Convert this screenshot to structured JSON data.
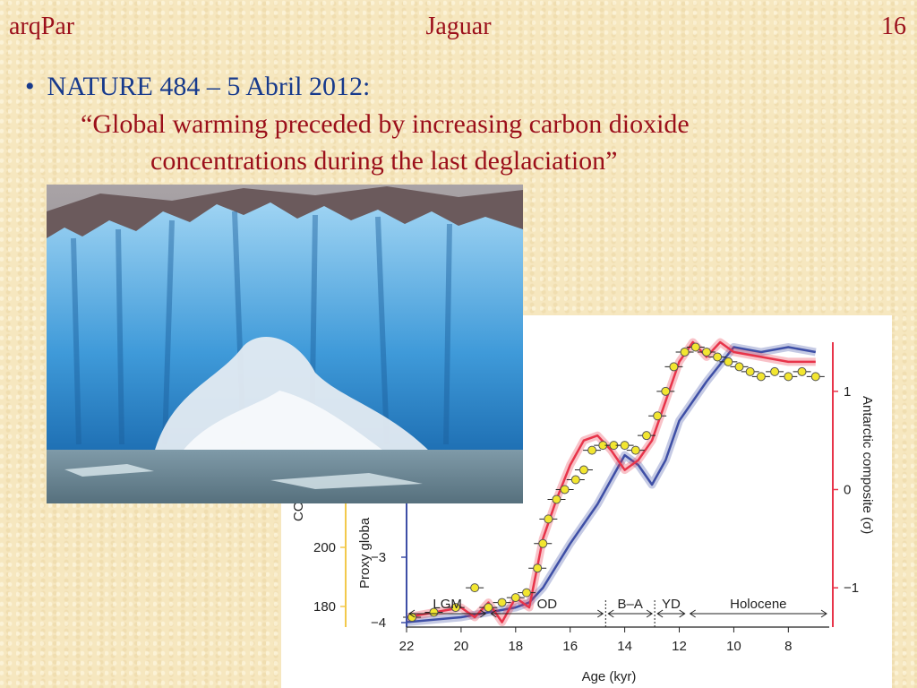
{
  "header": {
    "left": "arqPar",
    "center": "Jaguar",
    "right": "16"
  },
  "bullet": {
    "symbol": "•",
    "text": "NATURE 484 – 5 Abril 2012:"
  },
  "quote": {
    "line1": "“Global warming preceded by increasing carbon dioxide",
    "line2": "concentrations during the last deglaciation”"
  },
  "colors": {
    "header_red": "#9b0f1a",
    "bullet_blue": "#173a8c",
    "proxy_blue": "#3e4fa6",
    "antarctic_red": "#e8344a",
    "co2_marker": "#f2e630"
  },
  "photo": {
    "subject": "glacier calving into sea"
  },
  "chart_data": {
    "type": "line",
    "xlabel": "Age (kyr)",
    "x_ticks": [
      22,
      20,
      18,
      16,
      14,
      12,
      10,
      8
    ],
    "xlim": [
      22,
      6.5
    ],
    "left_axis_co2": {
      "label_visible": "CO",
      "ticks": [
        180,
        200
      ]
    },
    "left_axis_proxy": {
      "label_visible": "Proxy globa",
      "ticks": [
        -4,
        -3
      ]
    },
    "right_axis": {
      "label": "Antarctic composite (σ)",
      "ticks": [
        1,
        0,
        -1
      ],
      "ylim": [
        -1.4,
        1.5
      ]
    },
    "periods": [
      {
        "label": "LGM",
        "from": 22,
        "to": 19
      },
      {
        "label": "OD",
        "from": 19,
        "to": 14.7
      },
      {
        "label": "B–A",
        "from": 14.7,
        "to": 12.9
      },
      {
        "label": "YD",
        "from": 12.9,
        "to": 11.7
      },
      {
        "label": "Holocene",
        "from": 11.7,
        "to": 6.5
      }
    ],
    "series": [
      {
        "name": "",
        "color": "#3e4fa6",
        "x": [
          22,
          20,
          19,
          18,
          17.5,
          17,
          16,
          15,
          14.5,
          14,
          13.5,
          13,
          12.5,
          12,
          11,
          10,
          9,
          8,
          7
        ],
        "y": [
          -1.35,
          -1.3,
          -1.25,
          -1.2,
          -1.15,
          -1.0,
          -0.55,
          -0.15,
          0.1,
          0.35,
          0.25,
          0.05,
          0.3,
          0.7,
          1.1,
          1.45,
          1.4,
          1.45,
          1.4
        ]
      },
      {
        "name": "",
        "color": "#e8344a",
        "x": [
          22,
          21,
          20,
          19.5,
          19,
          18.5,
          18,
          17.5,
          17,
          16.5,
          16,
          15.5,
          15,
          14.5,
          14,
          13.5,
          13,
          12.5,
          12,
          11.5,
          11,
          10.5,
          10,
          9,
          8,
          7
        ],
        "y": [
          -1.3,
          -1.25,
          -1.2,
          -1.3,
          -1.15,
          -1.35,
          -1.1,
          -1.2,
          -0.5,
          -0.1,
          0.25,
          0.5,
          0.55,
          0.4,
          0.2,
          0.3,
          0.5,
          0.9,
          1.3,
          1.5,
          1.35,
          1.5,
          1.4,
          1.35,
          1.3,
          1.3
        ]
      },
      {
        "name": "",
        "color": "#f2e630",
        "x": [
          21.8,
          21,
          20.2,
          19.5,
          19,
          18.5,
          18,
          17.6,
          17.2,
          17,
          16.8,
          16.5,
          16.2,
          15.8,
          15.5,
          15.2,
          14.8,
          14.4,
          14,
          13.6,
          13.2,
          12.8,
          12.5,
          12.2,
          11.8,
          11.4,
          11,
          10.6,
          10.2,
          9.8,
          9.4,
          9,
          8.5,
          8,
          7.5,
          7
        ],
        "y": [
          -1.3,
          -1.25,
          -1.2,
          -1.0,
          -1.2,
          -1.15,
          -1.1,
          -1.05,
          -0.8,
          -0.55,
          -0.3,
          -0.1,
          0.0,
          0.1,
          0.2,
          0.4,
          0.45,
          0.45,
          0.45,
          0.4,
          0.55,
          0.75,
          1.0,
          1.25,
          1.4,
          1.45,
          1.4,
          1.35,
          1.3,
          1.25,
          1.2,
          1.15,
          1.2,
          1.15,
          1.2,
          1.15
        ]
      }
    ]
  }
}
